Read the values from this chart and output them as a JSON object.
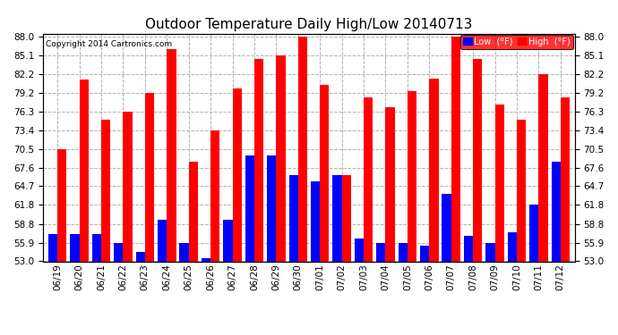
{
  "title": "Outdoor Temperature Daily High/Low 20140713",
  "copyright": "Copyright 2014 Cartronics.com",
  "legend_low": "Low  (°F)",
  "legend_high": "High  (°F)",
  "categories": [
    "06/19",
    "06/20",
    "06/21",
    "06/22",
    "06/23",
    "06/24",
    "06/25",
    "06/26",
    "06/27",
    "06/28",
    "06/29",
    "06/30",
    "07/01",
    "07/02",
    "07/03",
    "07/04",
    "07/05",
    "07/06",
    "07/07",
    "07/08",
    "07/09",
    "07/10",
    "07/11",
    "07/12"
  ],
  "highs": [
    70.5,
    81.3,
    75.0,
    76.3,
    79.2,
    86.0,
    68.5,
    73.4,
    80.0,
    84.5,
    85.1,
    88.0,
    80.5,
    66.5,
    78.5,
    77.0,
    79.5,
    81.5,
    88.0,
    84.5,
    77.5,
    75.0,
    82.2,
    78.5
  ],
  "lows": [
    57.2,
    57.2,
    57.2,
    55.9,
    54.5,
    59.5,
    55.9,
    53.5,
    59.5,
    69.5,
    69.5,
    66.5,
    65.5,
    66.5,
    56.5,
    55.9,
    55.9,
    55.5,
    63.5,
    57.0,
    55.9,
    57.5,
    61.8,
    68.5
  ],
  "ylim": [
    53.0,
    88.0
  ],
  "yticks": [
    53.0,
    55.9,
    58.8,
    61.8,
    64.7,
    67.6,
    70.5,
    73.4,
    76.3,
    79.2,
    82.2,
    85.1,
    88.0
  ],
  "bar_width": 0.42,
  "high_color": "#ff0000",
  "low_color": "#0000ff",
  "background_color": "#ffffff",
  "grid_color": "#b0b0b0",
  "title_fontsize": 11,
  "tick_fontsize": 7.5,
  "label_fontsize": 7.5
}
